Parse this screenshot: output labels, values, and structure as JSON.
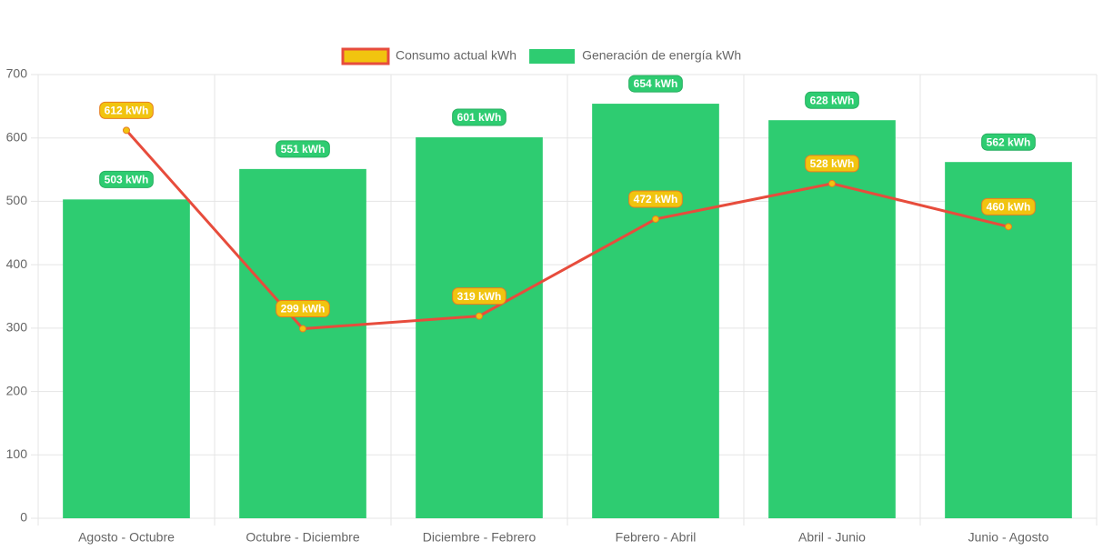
{
  "chart_data": {
    "type": "bar",
    "categories": [
      "Agosto - Octubre",
      "Octubre - Diciembre",
      "Diciembre - Febrero",
      "Febrero - Abril",
      "Abril - Junio",
      "Junio - Agosto"
    ],
    "series": [
      {
        "name": "Consumo actual kWh",
        "type": "line",
        "color": "#e74c3c",
        "point_color": "#f1c40f",
        "values": [
          612,
          299,
          319,
          472,
          528,
          460
        ],
        "value_labels": [
          "612 kWh",
          "299 kWh",
          "319 kWh",
          "472 kWh",
          "528 kWh",
          "460 kWh"
        ]
      },
      {
        "name": "Generación de energía kWh",
        "type": "bar",
        "color": "#2ecc71",
        "values": [
          503,
          551,
          601,
          654,
          628,
          562
        ],
        "value_labels": [
          "503 kWh",
          "551 kWh",
          "601 kWh",
          "654 kWh",
          "628 kWh",
          "562 kWh"
        ]
      }
    ],
    "ylim": [
      0,
      700
    ],
    "yticks": [
      0,
      100,
      200,
      300,
      400,
      500,
      600,
      700
    ],
    "grid": true,
    "legend": "top"
  }
}
